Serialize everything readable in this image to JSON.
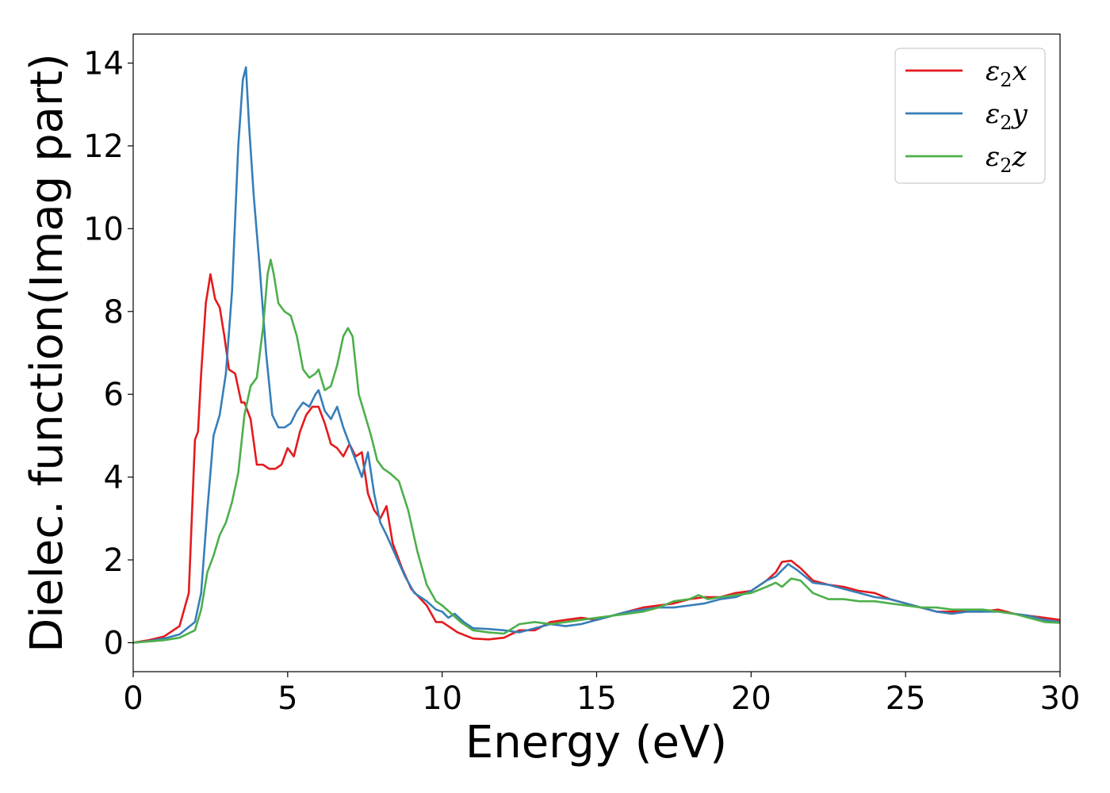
{
  "chart_data": {
    "type": "line",
    "title": "",
    "xlabel": "Energy (eV)",
    "ylabel": "Dielec. function(Imag part)",
    "xlim": [
      0,
      30
    ],
    "ylim": [
      -0.7,
      14.7
    ],
    "xticks": [
      0,
      5,
      10,
      15,
      20,
      25,
      30
    ],
    "yticks": [
      0,
      2,
      4,
      6,
      8,
      10,
      12,
      14
    ],
    "grid": false,
    "legend_position": "top-right",
    "series": [
      {
        "name": "ε₂x",
        "legend_base": "ε",
        "legend_sub": "2",
        "legend_suffix": "x",
        "color": "#e41a1c",
        "x": [
          0,
          0.5,
          1.0,
          1.5,
          1.8,
          2.0,
          2.1,
          2.2,
          2.35,
          2.5,
          2.65,
          2.8,
          2.95,
          3.1,
          3.3,
          3.5,
          3.6,
          3.8,
          4.0,
          4.2,
          4.4,
          4.6,
          4.8,
          5.0,
          5.2,
          5.4,
          5.6,
          5.8,
          6.0,
          6.2,
          6.4,
          6.6,
          6.8,
          7.0,
          7.2,
          7.4,
          7.6,
          7.8,
          8.0,
          8.2,
          8.4,
          8.7,
          9.0,
          9.5,
          9.8,
          10.0,
          10.2,
          10.5,
          11.0,
          11.5,
          12.0,
          12.5,
          13.0,
          13.5,
          14.0,
          14.5,
          15.0,
          15.5,
          16.0,
          16.5,
          17.0,
          17.5,
          18.0,
          18.5,
          19.0,
          19.5,
          20.0,
          20.5,
          20.8,
          21.0,
          21.3,
          21.6,
          22.0,
          22.5,
          23.0,
          23.5,
          24.0,
          24.5,
          25.0,
          25.5,
          26.0,
          26.5,
          27.0,
          27.5,
          28.0,
          28.5,
          29.0,
          29.5,
          30.0
        ],
        "y": [
          0.0,
          0.06,
          0.15,
          0.4,
          1.2,
          4.9,
          5.1,
          6.5,
          8.2,
          8.9,
          8.3,
          8.1,
          7.4,
          6.6,
          6.5,
          5.8,
          5.8,
          5.4,
          4.3,
          4.3,
          4.2,
          4.2,
          4.3,
          4.7,
          4.5,
          5.1,
          5.5,
          5.7,
          5.7,
          5.3,
          4.8,
          4.7,
          4.5,
          4.8,
          4.5,
          4.6,
          3.6,
          3.2,
          3.0,
          3.3,
          2.4,
          1.8,
          1.3,
          0.9,
          0.5,
          0.5,
          0.4,
          0.25,
          0.1,
          0.08,
          0.12,
          0.3,
          0.3,
          0.5,
          0.55,
          0.6,
          0.55,
          0.65,
          0.75,
          0.85,
          0.9,
          0.95,
          1.05,
          1.1,
          1.1,
          1.2,
          1.25,
          1.5,
          1.7,
          1.95,
          1.98,
          1.8,
          1.5,
          1.4,
          1.35,
          1.25,
          1.2,
          1.05,
          0.95,
          0.85,
          0.75,
          0.75,
          0.75,
          0.75,
          0.8,
          0.7,
          0.65,
          0.6,
          0.55
        ]
      },
      {
        "name": "ε₂y",
        "legend_base": "ε",
        "legend_sub": "2",
        "legend_suffix": "y",
        "color": "#377eb8",
        "x": [
          0,
          0.5,
          1.0,
          1.5,
          2.0,
          2.2,
          2.4,
          2.6,
          2.8,
          3.0,
          3.2,
          3.4,
          3.55,
          3.65,
          3.75,
          3.9,
          4.1,
          4.3,
          4.5,
          4.7,
          4.9,
          5.1,
          5.3,
          5.5,
          5.7,
          5.9,
          6.0,
          6.2,
          6.4,
          6.6,
          6.8,
          7.0,
          7.2,
          7.4,
          7.6,
          7.8,
          8.0,
          8.2,
          8.5,
          8.8,
          9.1,
          9.5,
          9.8,
          10.0,
          10.2,
          10.4,
          10.7,
          11.0,
          11.5,
          12.0,
          12.5,
          13.0,
          13.5,
          14.0,
          14.5,
          15.0,
          15.5,
          16.0,
          16.5,
          17.0,
          17.5,
          18.0,
          18.5,
          19.0,
          19.5,
          20.0,
          20.5,
          20.8,
          21.0,
          21.2,
          21.5,
          22.0,
          22.5,
          23.0,
          23.5,
          24.0,
          24.5,
          25.0,
          25.5,
          26.0,
          26.5,
          27.0,
          27.5,
          28.0,
          28.5,
          29.0,
          29.5,
          30.0
        ],
        "y": [
          0.0,
          0.04,
          0.1,
          0.2,
          0.5,
          1.2,
          3.2,
          5.0,
          5.5,
          6.5,
          8.5,
          12.0,
          13.6,
          13.9,
          12.5,
          10.8,
          9.0,
          7.0,
          5.5,
          5.2,
          5.2,
          5.3,
          5.6,
          5.8,
          5.7,
          6.0,
          6.1,
          5.6,
          5.4,
          5.7,
          5.2,
          4.8,
          4.4,
          4.0,
          4.6,
          3.6,
          2.9,
          2.6,
          2.1,
          1.6,
          1.2,
          1.0,
          0.8,
          0.75,
          0.6,
          0.7,
          0.5,
          0.35,
          0.33,
          0.3,
          0.25,
          0.35,
          0.45,
          0.4,
          0.45,
          0.55,
          0.65,
          0.75,
          0.8,
          0.85,
          0.85,
          0.9,
          0.95,
          1.05,
          1.1,
          1.25,
          1.5,
          1.6,
          1.75,
          1.9,
          1.75,
          1.45,
          1.4,
          1.3,
          1.2,
          1.1,
          1.05,
          0.95,
          0.85,
          0.75,
          0.7,
          0.75,
          0.75,
          0.75,
          0.7,
          0.65,
          0.55,
          0.5
        ]
      },
      {
        "name": "ε₂z",
        "legend_base": "ε",
        "legend_sub": "2",
        "legend_suffix": "z",
        "color": "#4daf4a",
        "x": [
          0,
          0.5,
          1.0,
          1.5,
          2.0,
          2.2,
          2.4,
          2.6,
          2.8,
          3.0,
          3.2,
          3.4,
          3.6,
          3.8,
          4.0,
          4.2,
          4.35,
          4.45,
          4.55,
          4.7,
          4.9,
          5.1,
          5.3,
          5.5,
          5.7,
          5.9,
          6.0,
          6.2,
          6.4,
          6.6,
          6.8,
          6.95,
          7.1,
          7.3,
          7.5,
          7.7,
          7.9,
          8.1,
          8.3,
          8.6,
          8.9,
          9.2,
          9.5,
          9.8,
          10.0,
          10.3,
          10.6,
          11.0,
          11.5,
          12.0,
          12.5,
          13.0,
          13.5,
          14.0,
          14.5,
          15.0,
          15.5,
          16.0,
          16.5,
          17.0,
          17.5,
          18.0,
          18.3,
          18.6,
          19.0,
          19.5,
          20.0,
          20.5,
          20.8,
          21.0,
          21.3,
          21.6,
          22.0,
          22.5,
          23.0,
          23.5,
          24.0,
          24.5,
          25.0,
          25.5,
          26.0,
          26.5,
          27.0,
          27.5,
          28.0,
          28.5,
          29.0,
          29.5,
          30.0
        ],
        "y": [
          0.0,
          0.03,
          0.06,
          0.12,
          0.3,
          0.8,
          1.7,
          2.1,
          2.6,
          2.9,
          3.4,
          4.1,
          5.5,
          6.2,
          6.4,
          7.6,
          8.9,
          9.25,
          8.9,
          8.2,
          8.0,
          7.9,
          7.4,
          6.6,
          6.4,
          6.5,
          6.6,
          6.1,
          6.2,
          6.7,
          7.4,
          7.6,
          7.4,
          6.0,
          5.5,
          5.0,
          4.4,
          4.2,
          4.1,
          3.9,
          3.2,
          2.2,
          1.4,
          1.0,
          0.9,
          0.7,
          0.5,
          0.3,
          0.25,
          0.22,
          0.45,
          0.5,
          0.45,
          0.5,
          0.55,
          0.6,
          0.65,
          0.7,
          0.75,
          0.85,
          1.0,
          1.05,
          1.15,
          1.05,
          1.1,
          1.15,
          1.2,
          1.35,
          1.45,
          1.35,
          1.55,
          1.5,
          1.2,
          1.05,
          1.05,
          1.0,
          1.0,
          0.95,
          0.9,
          0.85,
          0.85,
          0.8,
          0.8,
          0.8,
          0.75,
          0.7,
          0.6,
          0.5,
          0.48
        ]
      }
    ]
  }
}
